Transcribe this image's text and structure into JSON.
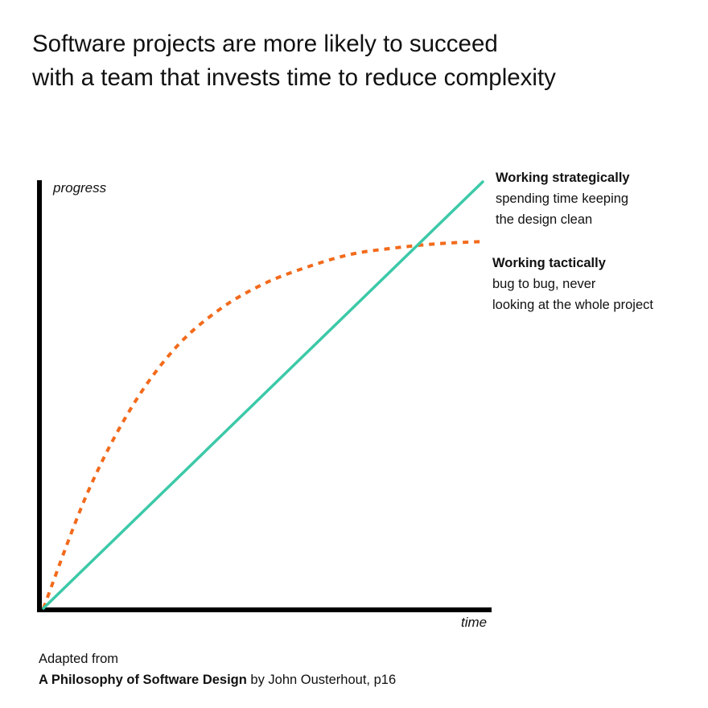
{
  "header": {
    "title_line1": "Software projects are more likely to succeed",
    "title_line2": "with a team that invests time to reduce complexity"
  },
  "chart_data": {
    "type": "line",
    "xlabel": "time",
    "ylabel": "progress",
    "xlim": [
      0,
      1
    ],
    "ylim": [
      0,
      1
    ],
    "grid": false,
    "series": [
      {
        "name": "Working strategically",
        "description_lines": [
          "spending time keeping",
          "the design clean"
        ],
        "style": "solid",
        "color": "#3cc9a8",
        "x": [
          0,
          1
        ],
        "y": [
          0,
          1
        ]
      },
      {
        "name": "Working tactically",
        "description_lines": [
          "bug to bug, never",
          "looking at the whole project"
        ],
        "style": "dotted",
        "color": "#f26a1b",
        "x": [
          0,
          0.1,
          0.2,
          0.3,
          0.4,
          0.5,
          0.6,
          0.7,
          0.8,
          0.9,
          1.0
        ],
        "y": [
          0,
          0.27,
          0.47,
          0.61,
          0.7,
          0.76,
          0.8,
          0.83,
          0.845,
          0.855,
          0.86
        ]
      }
    ]
  },
  "footer": {
    "line1": "Adapted from",
    "book_title": "A Philosophy of Software Design",
    "line2_rest": " by John Ousterhout, p16"
  }
}
